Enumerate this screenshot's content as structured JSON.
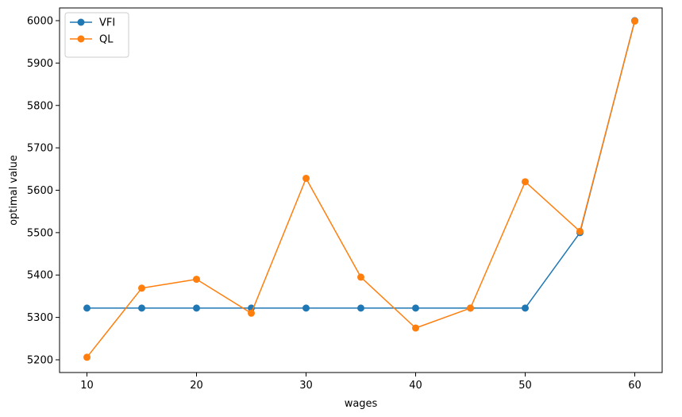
{
  "chart_data": {
    "type": "line",
    "xlabel": "wages",
    "ylabel": "optimal value",
    "x": [
      10,
      15,
      20,
      25,
      30,
      35,
      40,
      45,
      50,
      55,
      60
    ],
    "xticks": [
      10,
      20,
      30,
      40,
      50,
      60
    ],
    "yticks": [
      5200,
      5300,
      5400,
      5500,
      5600,
      5700,
      5800,
      5900,
      6000
    ],
    "xlim": [
      7.5,
      62.5
    ],
    "ylim": [
      5170,
      6030
    ],
    "grid": false,
    "legend_position": "top-left",
    "series": [
      {
        "name": "VFI",
        "color": "#1f77b4",
        "marker": "circle",
        "values": [
          5322,
          5322,
          5322,
          5322,
          5322,
          5322,
          5322,
          5322,
          5322,
          5500,
          6000
        ]
      },
      {
        "name": "QL",
        "color": "#ff7f0e",
        "marker": "circle",
        "values": [
          5206,
          5369,
          5390,
          5310,
          5628,
          5395,
          5275,
          5322,
          5620,
          5503,
          5999
        ]
      }
    ]
  }
}
